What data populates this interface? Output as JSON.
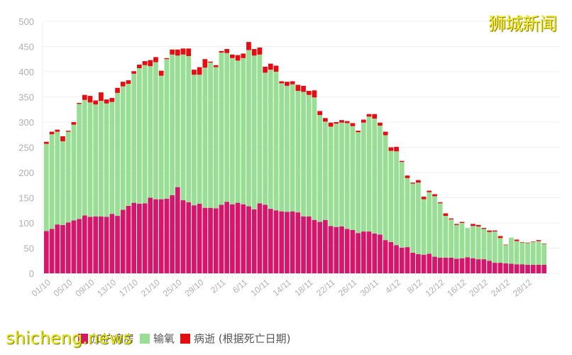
{
  "watermark_top": "狮城新闻",
  "watermark_bottom": "shicheng.news",
  "legend": [
    {
      "label": "加护病房",
      "color": "#d4176b"
    },
    {
      "label": "输氧",
      "color": "#98de95"
    },
    {
      "label": "病逝 (根据死亡日期)",
      "color": "#e40d12"
    }
  ],
  "chart_data": {
    "type": "bar",
    "stacked": true,
    "title": "",
    "xlabel": "",
    "ylabel": "",
    "ylim": [
      0,
      500
    ],
    "yticks": [
      0,
      50,
      100,
      150,
      200,
      250,
      300,
      350,
      400,
      450,
      500
    ],
    "grid": true,
    "legend_position": "bottom",
    "x_tick_labels": [
      "01/10",
      "05/10",
      "09/10",
      "13/10",
      "17/10",
      "21/10",
      "25/10",
      "29/10",
      "2/11",
      "6/11",
      "10/11",
      "14/11",
      "18/11",
      "22/11",
      "26/11",
      "30/11",
      "4/12",
      "8/12",
      "12/12",
      "16/12",
      "20/12",
      "24/12",
      "28/12"
    ],
    "x_tick_every": 4,
    "categories_count": 92,
    "series": [
      {
        "name": "加护病房",
        "color": "#d4176b",
        "values": [
          84,
          88,
          97,
          96,
          101,
          105,
          108,
          115,
          112,
          113,
          113,
          112,
          118,
          114,
          126,
          134,
          140,
          138,
          139,
          150,
          147,
          147,
          148,
          155,
          171,
          145,
          141,
          135,
          138,
          130,
          130,
          129,
          136,
          142,
          137,
          140,
          137,
          133,
          127,
          139,
          136,
          128,
          125,
          123,
          122,
          123,
          121,
          113,
          113,
          106,
          102,
          106,
          94,
          92,
          93,
          88,
          86,
          80,
          83,
          83,
          79,
          77,
          66,
          62,
          56,
          51,
          52,
          41,
          38,
          37,
          39,
          33,
          31,
          31,
          31,
          29,
          30,
          32,
          30,
          28,
          28,
          25,
          21,
          21,
          20,
          19,
          18,
          18,
          17,
          17,
          17,
          17
        ]
      },
      {
        "name": "输氧",
        "color": "#98de95",
        "values": [
          173,
          188,
          184,
          166,
          180,
          190,
          228,
          229,
          227,
          222,
          229,
          225,
          222,
          244,
          245,
          242,
          256,
          269,
          274,
          261,
          272,
          245,
          277,
          279,
          261,
          289,
          290,
          259,
          256,
          278,
          288,
          280,
          302,
          295,
          290,
          282,
          290,
          310,
          305,
          295,
          262,
          276,
          275,
          254,
          250,
          252,
          241,
          247,
          241,
          243,
          212,
          195,
          197,
          205,
          206,
          210,
          206,
          200,
          216,
          228,
          228,
          216,
          208,
          181,
          186,
          170,
          137,
          137,
          142,
          110,
          122,
          120,
          108,
          83,
          76,
          67,
          70,
          58,
          64,
          65,
          60,
          57,
          62,
          49,
          36,
          52,
          46,
          43,
          43,
          45,
          47,
          41
        ]
      },
      {
        "name": "病逝 (根据死亡日期)",
        "color": "#e40d12",
        "values": [
          4,
          5,
          4,
          10,
          2,
          5,
          2,
          10,
          13,
          8,
          17,
          8,
          8,
          10,
          9,
          7,
          5,
          7,
          8,
          12,
          10,
          10,
          2,
          10,
          12,
          12,
          15,
          10,
          15,
          17,
          2,
          4,
          3,
          8,
          7,
          11,
          9,
          16,
          13,
          14,
          12,
          12,
          12,
          4,
          8,
          6,
          12,
          12,
          8,
          14,
          8,
          7,
          8,
          3,
          5,
          4,
          6,
          3,
          6,
          5,
          9,
          6,
          7,
          7,
          9,
          2,
          5,
          2,
          5,
          5,
          3,
          4,
          2,
          5,
          2,
          2,
          2,
          0,
          4,
          3,
          2,
          3,
          2,
          4,
          1,
          0,
          3,
          1,
          1,
          1,
          2,
          1
        ]
      }
    ]
  }
}
